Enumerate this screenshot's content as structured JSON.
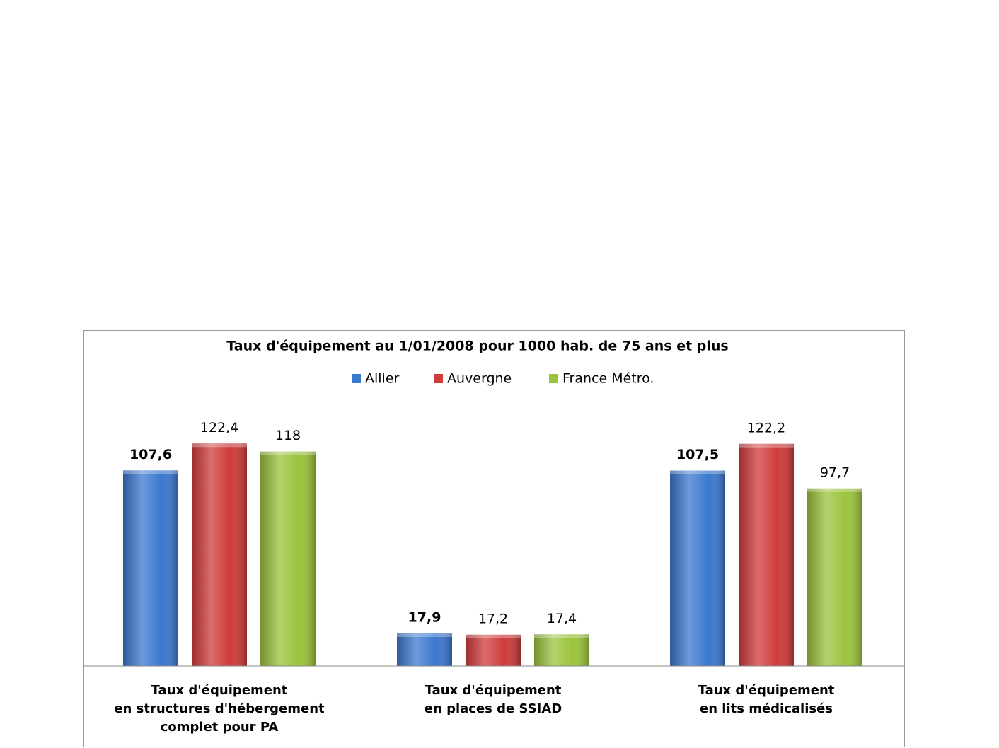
{
  "chart_data": {
    "type": "bar",
    "title": "Taux d'équipement au 1/01/2008 pour 1000 hab. de 75 ans et plus",
    "categories": [
      [
        "Taux d'équipement",
        "en structures d'hébergement",
        "complet pour PA"
      ],
      [
        "Taux d'équipement",
        "en places de SSIAD"
      ],
      [
        "Taux d'équipement",
        "en lits médicalisés"
      ]
    ],
    "series": [
      {
        "name": "Allier",
        "color": "#3b78cf",
        "values": [
          107.6,
          17.9,
          107.5
        ],
        "value_labels": [
          "107,6",
          "17,9",
          "107,5"
        ]
      },
      {
        "name": "Auvergne",
        "color": "#d03b3b",
        "values": [
          122.4,
          17.2,
          122.2
        ],
        "value_labels": [
          "122,4",
          "17,2",
          "122,2"
        ]
      },
      {
        "name": "France Métro.",
        "color": "#9bc33c",
        "values": [
          118,
          17.4,
          97.7
        ],
        "value_labels": [
          "118",
          "17,4",
          "97,7"
        ]
      }
    ],
    "ylim": [
      0,
      140
    ],
    "legend": "top"
  }
}
